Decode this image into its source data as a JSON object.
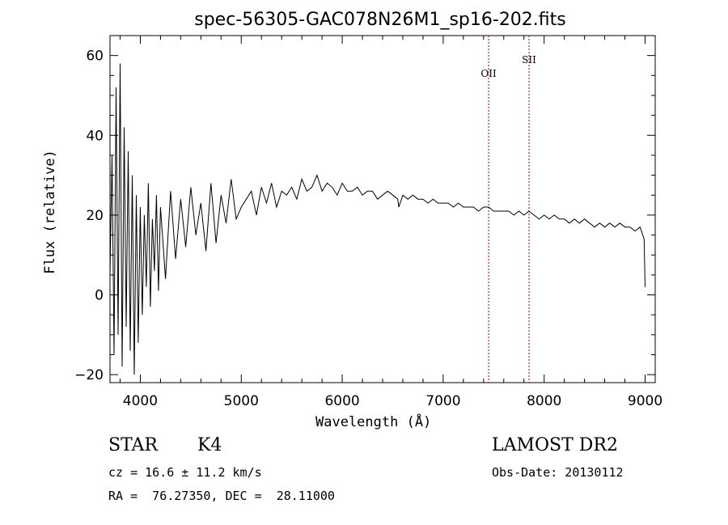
{
  "chart_data": {
    "type": "line",
    "title": "spec-56305-GAC078N26M1_sp16-202.fits",
    "xlabel": "Wavelength (Å)",
    "ylabel": "Flux (relative)",
    "xlim": [
      3700,
      9100
    ],
    "ylim": [
      -22,
      65
    ],
    "xticks": [
      4000,
      5000,
      6000,
      7000,
      8000,
      9000
    ],
    "yticks": [
      -20,
      0,
      20,
      40,
      60
    ],
    "grid": false,
    "series": [
      {
        "color": "#000000",
        "x": [
          3700,
          3720,
          3740,
          3760,
          3780,
          3800,
          3820,
          3840,
          3860,
          3880,
          3900,
          3920,
          3940,
          3960,
          3980,
          4000,
          4020,
          4040,
          4060,
          4080,
          4100,
          4120,
          4140,
          4160,
          4180,
          4200,
          4250,
          4300,
          4350,
          4400,
          4450,
          4500,
          4550,
          4600,
          4650,
          4700,
          4750,
          4800,
          4850,
          4900,
          4950,
          5000,
          5050,
          5100,
          5150,
          5200,
          5250,
          5300,
          5350,
          5400,
          5450,
          5500,
          5550,
          5600,
          5650,
          5700,
          5750,
          5800,
          5850,
          5900,
          5950,
          6000,
          6050,
          6100,
          6150,
          6200,
          6250,
          6300,
          6350,
          6400,
          6450,
          6500,
          6550,
          6560,
          6600,
          6650,
          6700,
          6750,
          6800,
          6850,
          6900,
          6950,
          7000,
          7050,
          7100,
          7150,
          7200,
          7250,
          7300,
          7350,
          7400,
          7450,
          7500,
          7550,
          7600,
          7650,
          7700,
          7750,
          7800,
          7850,
          7900,
          7950,
          8000,
          8050,
          8100,
          8150,
          8200,
          8250,
          8300,
          8350,
          8400,
          8450,
          8500,
          8550,
          8600,
          8650,
          8700,
          8750,
          8800,
          8850,
          8900,
          8950,
          8990,
          9000
        ],
        "y": [
          5,
          35,
          -15,
          52,
          -10,
          58,
          -18,
          42,
          -8,
          36,
          -14,
          30,
          -20,
          25,
          -12,
          22,
          -5,
          20,
          2,
          28,
          -3,
          19,
          6,
          25,
          1,
          22,
          4,
          26,
          9,
          24,
          12,
          27,
          15,
          23,
          11,
          28,
          13,
          25,
          18,
          29,
          19,
          22,
          24,
          26,
          20,
          27,
          23,
          28,
          22,
          26,
          25,
          27,
          24,
          29,
          26,
          27,
          30,
          26,
          28,
          27,
          25,
          28,
          26,
          26,
          27,
          25,
          26,
          26,
          24,
          25,
          26,
          25,
          24,
          22,
          25,
          24,
          25,
          24,
          24,
          23,
          24,
          23,
          23,
          23,
          22,
          23,
          22,
          22,
          22,
          21,
          22,
          22,
          21,
          21,
          21,
          21,
          20,
          21,
          20,
          21,
          20,
          19,
          20,
          19,
          20,
          19,
          19,
          18,
          19,
          18,
          19,
          18,
          17,
          18,
          17,
          18,
          17,
          18,
          17,
          17,
          16,
          17,
          14,
          2
        ],
        "values": [
          5,
          35,
          -15,
          52,
          -10,
          58,
          -18,
          42,
          -8,
          36,
          -14,
          30,
          -20,
          25,
          -12,
          22,
          -5,
          20,
          2,
          28,
          -3,
          19,
          6,
          25,
          1,
          22,
          4,
          26,
          9,
          24,
          12,
          27,
          15,
          23,
          11,
          28,
          13,
          25,
          18,
          29,
          19,
          22,
          24,
          26,
          20,
          27,
          23,
          28,
          22,
          26,
          25,
          27,
          24,
          29,
          26,
          27,
          30,
          26,
          28,
          27,
          25,
          28,
          26,
          26,
          27,
          25,
          26,
          26,
          24,
          25,
          26,
          25,
          24,
          22,
          25,
          24,
          25,
          24,
          24,
          23,
          24,
          23,
          23,
          23,
          22,
          23,
          22,
          22,
          22,
          21,
          22,
          22,
          21,
          21,
          21,
          21,
          20,
          21,
          20,
          21,
          20,
          19,
          20,
          19,
          20,
          19,
          19,
          18,
          19,
          18,
          19,
          18,
          17,
          18,
          17,
          18,
          17,
          18,
          17,
          17,
          16,
          17,
          14,
          2
        ]
      }
    ],
    "annotations": [
      {
        "text": "OII",
        "x": 7450,
        "line_color": "#b00000"
      },
      {
        "text": "SII",
        "x": 7850,
        "line_color": "#b00000"
      }
    ]
  },
  "footer": {
    "class_label": "STAR",
    "subclass": "K4",
    "survey": "LAMOST DR2",
    "cz": "cz = 16.6 ± 11.2 km/s",
    "obs_date": "Obs-Date: 20130112",
    "coords": "RA =  76.27350, DEC =  28.11000"
  }
}
